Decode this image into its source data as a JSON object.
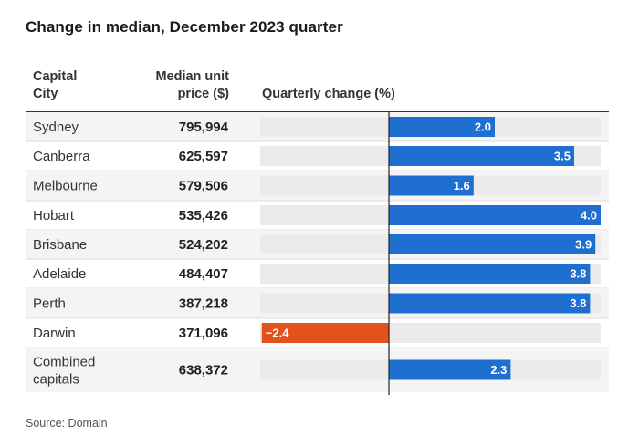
{
  "title": "Change in median, December 2023 quarter",
  "headers": {
    "city_line1": "Capital",
    "city_line2": "City",
    "price_line1": "Median unit",
    "price_line2": "price ($)",
    "change": "Quarterly change (%)"
  },
  "source": "Source: Domain",
  "colors": {
    "positive": "#1f6fd1",
    "negative": "#e2521c",
    "track": "#ebebeb",
    "row_alt": "#f4f4f4",
    "divider": "#dddddd"
  },
  "chart_data": {
    "type": "bar",
    "orientation": "horizontal",
    "categories": [
      "Sydney",
      "Canberra",
      "Melbourne",
      "Hobart",
      "Brisbane",
      "Adelaide",
      "Perth",
      "Darwin",
      "Combined capitals"
    ],
    "median_unit_price": [
      "795,994",
      "625,597",
      "579,506",
      "535,426",
      "524,202",
      "484,407",
      "387,218",
      "371,096",
      "638,372"
    ],
    "values": [
      2.0,
      3.5,
      1.6,
      4.0,
      3.9,
      3.8,
      3.8,
      -2.4,
      2.3
    ],
    "value_labels": [
      "2.0",
      "3.5",
      "1.6",
      "4.0",
      "3.9",
      "3.8",
      "3.8",
      "−2.4",
      "2.3"
    ],
    "xlabel": "Quarterly change (%)",
    "xlim": [
      -2.4,
      4.0
    ],
    "grid": false,
    "legend": "none"
  }
}
